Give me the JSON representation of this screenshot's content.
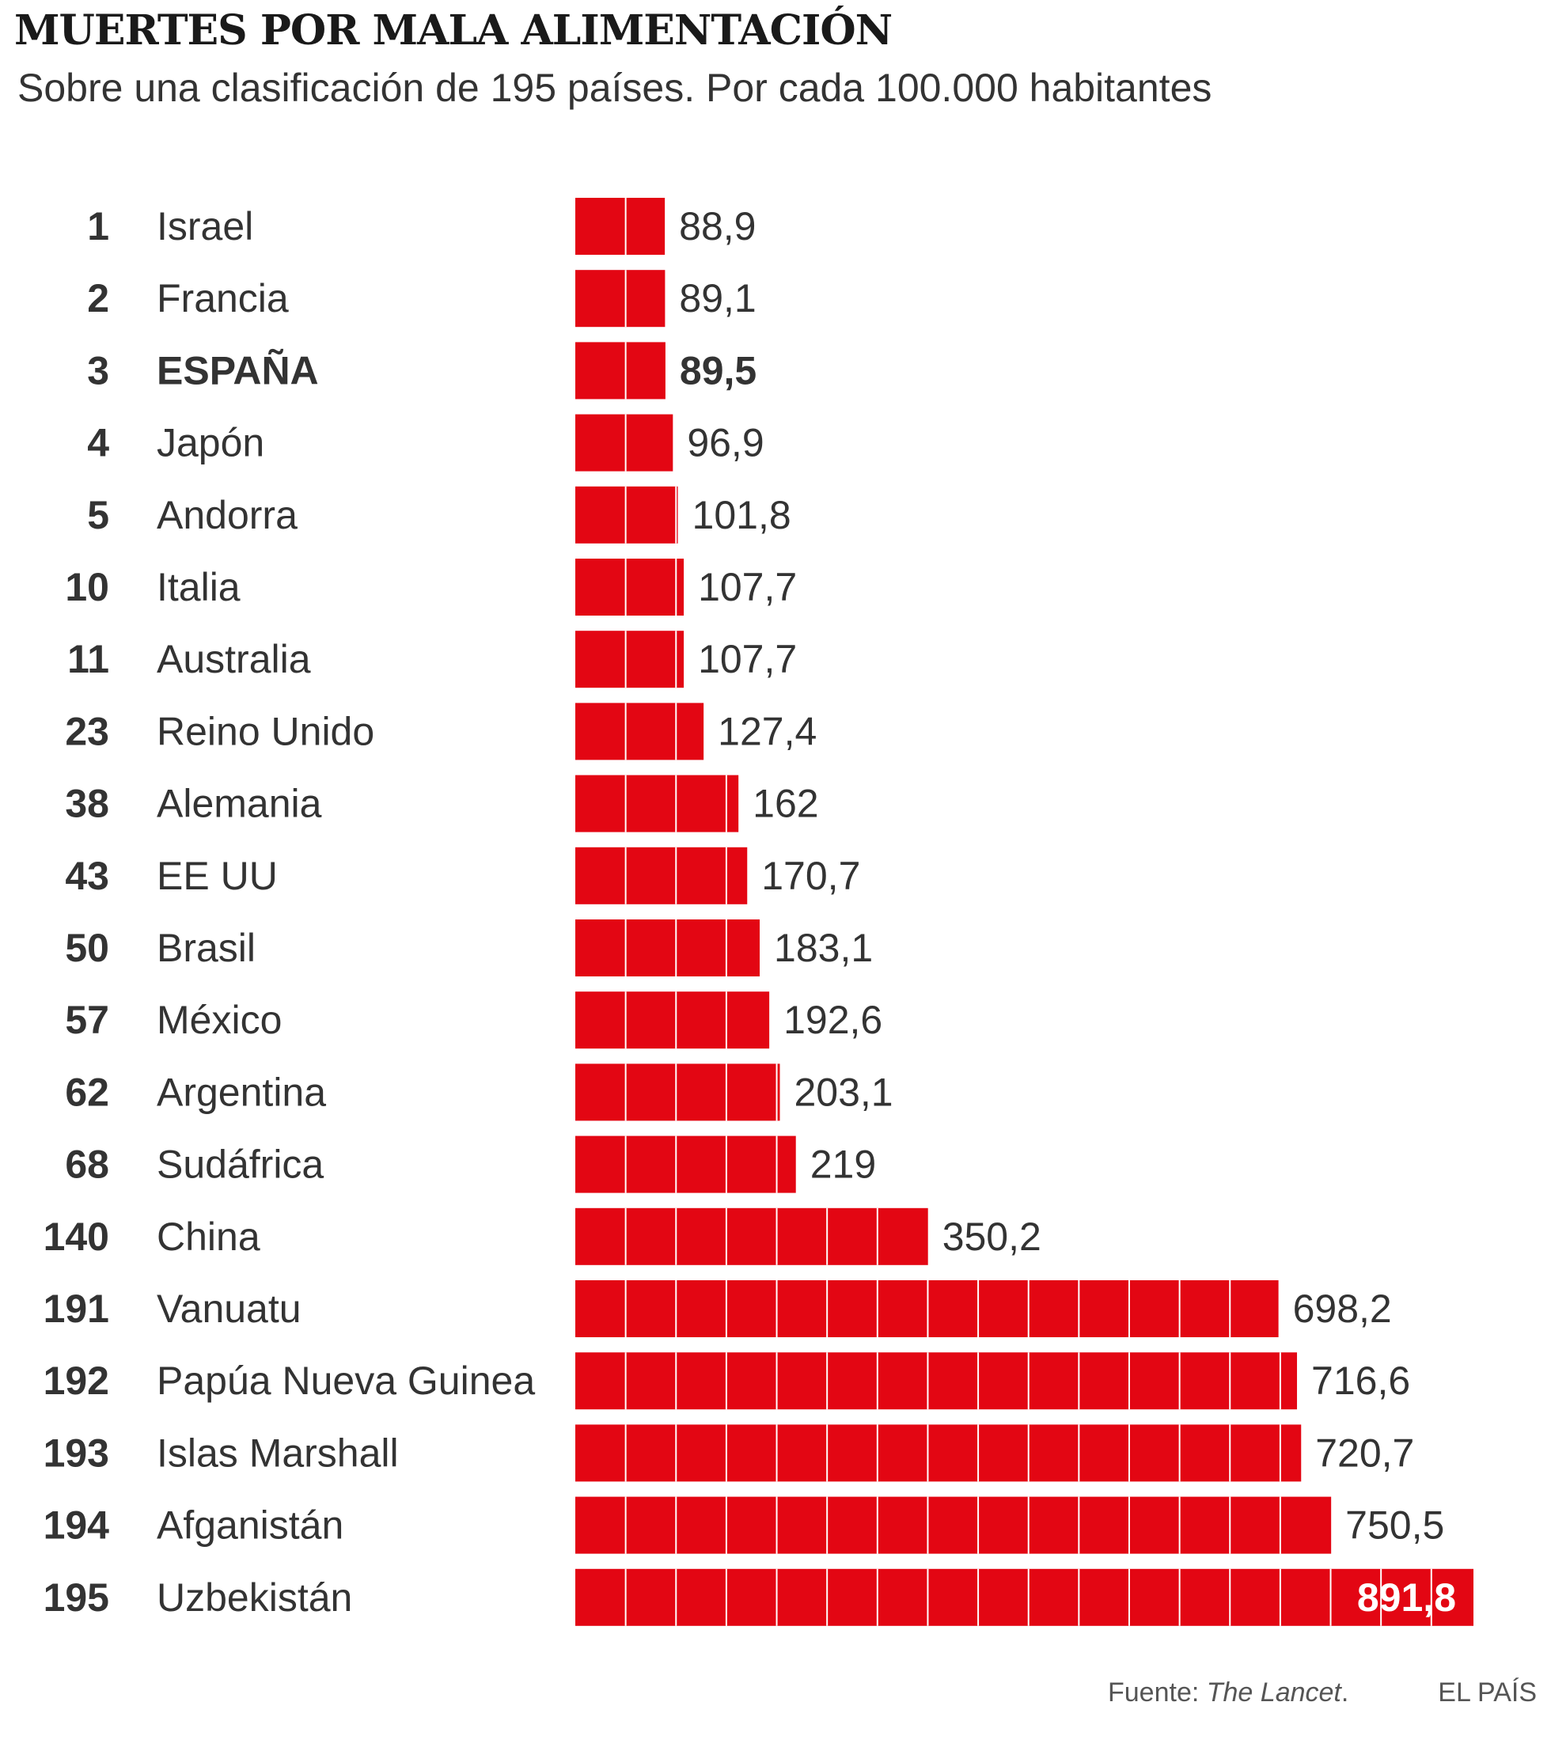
{
  "chart_data": {
    "type": "bar",
    "orientation": "horizontal",
    "title": "MUERTES POR MALA ALIMENTACIÓN",
    "subtitle": "Sobre una clasificación de 195 países. Por cada 100.000 habitantes",
    "bar_color": "#e30613",
    "text_color": "#333333",
    "highlight_category": "ESPAÑA",
    "rows": [
      {
        "rank": "1",
        "country": "Israel",
        "value": 88.9,
        "label": "88,9"
      },
      {
        "rank": "2",
        "country": "Francia",
        "value": 89.1,
        "label": "89,1"
      },
      {
        "rank": "3",
        "country": "ESPAÑA",
        "value": 89.5,
        "label": "89,5"
      },
      {
        "rank": "4",
        "country": "Japón",
        "value": 96.9,
        "label": "96,9"
      },
      {
        "rank": "5",
        "country": "Andorra",
        "value": 101.8,
        "label": "101,8"
      },
      {
        "rank": "10",
        "country": "Italia",
        "value": 107.7,
        "label": "107,7"
      },
      {
        "rank": "11",
        "country": "Australia",
        "value": 107.7,
        "label": "107,7"
      },
      {
        "rank": "23",
        "country": "Reino Unido",
        "value": 127.4,
        "label": "127,4"
      },
      {
        "rank": "38",
        "country": "Alemania",
        "value": 162,
        "label": "162"
      },
      {
        "rank": "43",
        "country": "EE UU",
        "value": 170.7,
        "label": "170,7"
      },
      {
        "rank": "50",
        "country": "Brasil",
        "value": 183.1,
        "label": "183,1"
      },
      {
        "rank": "57",
        "country": "México",
        "value": 192.6,
        "label": "192,6"
      },
      {
        "rank": "62",
        "country": "Argentina",
        "value": 203.1,
        "label": "203,1"
      },
      {
        "rank": "68",
        "country": "Sudáfrica",
        "value": 219,
        "label": "219"
      },
      {
        "rank": "140",
        "country": "China",
        "value": 350.2,
        "label": "350,2"
      },
      {
        "rank": "191",
        "country": "Vanuatu",
        "value": 698.2,
        "label": "698,2"
      },
      {
        "rank": "192",
        "country": "Papúa Nueva Guinea",
        "value": 716.6,
        "label": "716,6"
      },
      {
        "rank": "193",
        "country": "Islas Marshall",
        "value": 720.7,
        "label": "720,7"
      },
      {
        "rank": "194",
        "country": "Afganistán",
        "value": 750.5,
        "label": "750,5"
      },
      {
        "rank": "195",
        "country": "Uzbekistán",
        "value": 891.8,
        "label": "891,8"
      }
    ],
    "segment_unit": 50,
    "xlim": [
      0,
      891.8
    ],
    "source_prefix": "Fuente: ",
    "source_name": "The Lancet",
    "source_suffix": ".",
    "brand": "EL PAÍS"
  }
}
